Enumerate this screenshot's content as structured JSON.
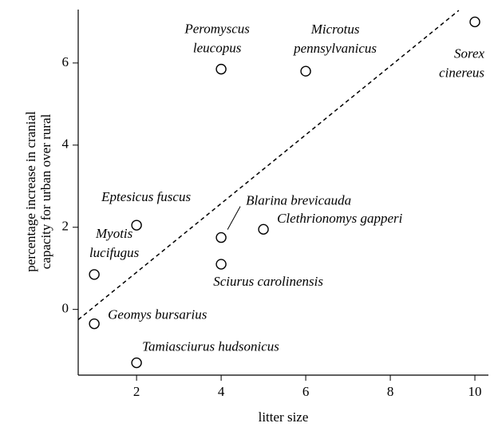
{
  "chart_data": {
    "type": "scatter",
    "x_label": "litter size",
    "y_label": [
      "percentage increase in cranial",
      "capacity for urban over rural"
    ],
    "labels": [
      [
        "Peromyscus",
        "leucopus"
      ],
      [
        "Microtus",
        "pennsylvanicus"
      ],
      [
        "Sorex",
        "cinereus"
      ],
      [
        "Eptesicus fuscus"
      ],
      [
        "Blarina brevicauda"
      ],
      [
        "Clethrionomys gapperi"
      ],
      [
        "Myotis",
        "lucifugus"
      ],
      [
        "Sciurus carolinensis"
      ],
      [
        "Geomys bursarius"
      ],
      [
        "Tamiasciurus hudsonicus"
      ]
    ],
    "x": [
      4,
      6,
      10,
      2,
      4,
      5,
      1,
      4,
      1,
      2
    ],
    "values": [
      5.85,
      5.8,
      7.0,
      2.05,
      1.75,
      1.95,
      0.85,
      1.1,
      -0.35,
      -1.3
    ],
    "trend_line": {
      "x": [
        0.62,
        9.62
      ],
      "y": [
        -0.25,
        7.28
      ]
    },
    "xlim": [
      0.62,
      10.32
    ],
    "ylim": [
      -1.6,
      7.3
    ],
    "xticks": [
      2,
      4,
      6,
      8,
      10
    ],
    "yticks": [
      0,
      2,
      4,
      6
    ],
    "grid": false
  }
}
